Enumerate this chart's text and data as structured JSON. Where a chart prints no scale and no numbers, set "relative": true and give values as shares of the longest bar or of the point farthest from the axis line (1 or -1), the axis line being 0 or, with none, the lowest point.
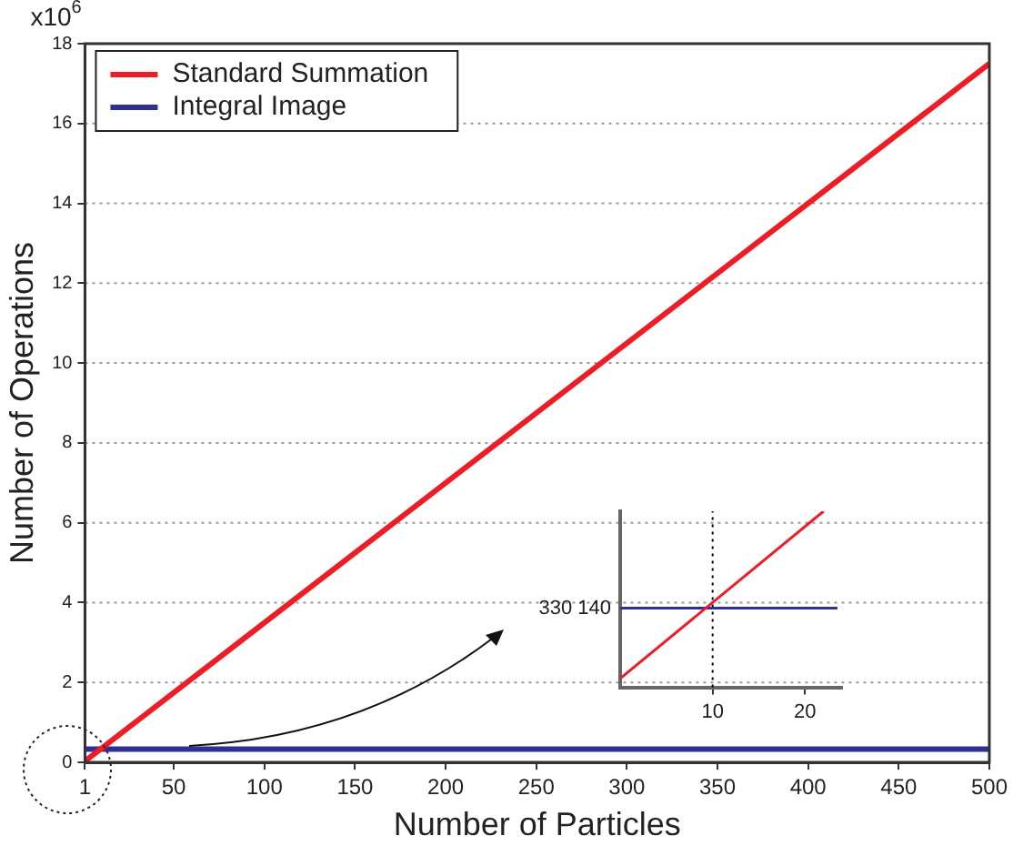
{
  "chart_data": [
    {
      "type": "line",
      "xlabel": "Number of Particles",
      "ylabel": "Number of Operations",
      "annotations": [
        "x10$^{6}$"
      ],
      "series": [
        {
          "name": "Standard Summation",
          "color": "#ee1c25",
          "x": [
            1,
            500
          ],
          "values": [
            0.03,
            17.5
          ]
        },
        {
          "name": "Integral Image",
          "color": "#2e3192",
          "x": [
            1,
            500
          ],
          "values": [
            0.33,
            0.33
          ]
        }
      ],
      "xlim": [
        1,
        500
      ],
      "xticks": [
        1,
        50,
        100,
        150,
        200,
        250,
        300,
        350,
        400,
        450,
        500
      ],
      "ylim": [
        0,
        18
      ],
      "yticks": [
        0,
        2,
        4,
        6,
        8,
        10,
        12,
        14,
        16,
        18
      ],
      "grid": "y",
      "legend": "top left",
      "line_style": "solid",
      "marker": "none"
    },
    {
      "type": "line",
      "relative": true,
      "annotations": [
        {
          "text": "330 140",
          "x": 0,
          "y": 0.45
        }
      ],
      "series": [
        {
          "color": "#ee1c25",
          "x": [
            0,
            22
          ],
          "values": [
            0.05,
            1
          ]
        },
        {
          "color": "#2e3192",
          "x": [
            0,
            23.5
          ],
          "values": [
            0.45,
            0.45
          ]
        }
      ],
      "xlim": [
        0,
        24
      ],
      "xticks": [
        10,
        20
      ],
      "ref_lines": [
        {
          "axis": "x",
          "value": 10,
          "line_style": "dotted"
        }
      ],
      "grid": false,
      "legend": false
    }
  ]
}
